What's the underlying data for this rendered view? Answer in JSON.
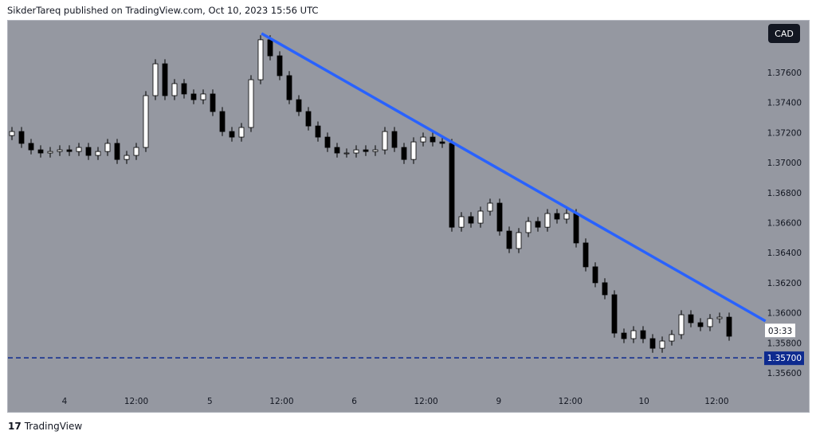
{
  "header": {
    "text": "SikderTareq published on TradingView.com, Oct 10, 2023 15:56 UTC"
  },
  "currency_button": "CAD",
  "footer": {
    "logo_mark": "17",
    "brand": "TradingView"
  },
  "chart_data": {
    "type": "candlestick",
    "title": "",
    "currency": "CAD",
    "first_open": 1.3718,
    "wick_pad": 0.0003,
    "closes": [
      1.37207,
      1.37128,
      1.37085,
      1.37064,
      1.37074,
      1.37085,
      1.37074,
      1.37101,
      1.37048,
      1.37074,
      1.37128,
      1.37021,
      1.37048,
      1.37101,
      1.37446,
      1.37658,
      1.37446,
      1.37526,
      1.37457,
      1.37419,
      1.37457,
      1.3734,
      1.37207,
      1.3717,
      1.37234,
      1.37552,
      1.37818,
      1.37711,
      1.37579,
      1.37419,
      1.3734,
      1.37244,
      1.3717,
      1.37101,
      1.37064,
      1.37064,
      1.37085,
      1.37074,
      1.37085,
      1.37207,
      1.37101,
      1.37021,
      1.37138,
      1.3717,
      1.37138,
      1.37128,
      1.3657,
      1.3664,
      1.36597,
      1.36677,
      1.3673,
      1.36544,
      1.36428,
      1.36534,
      1.36608,
      1.3657,
      1.36661,
      1.36624,
      1.36661,
      1.36465,
      1.36306,
      1.362,
      1.3612,
      1.35865,
      1.35828,
      1.35881,
      1.35828,
      1.35764,
      1.35812,
      1.35855,
      1.35987,
      1.35934,
      1.35908,
      1.35961,
      1.35971,
      1.35844
    ],
    "y_ticks": [
      "1.37600",
      "1.37400",
      "1.37200",
      "1.37000",
      "1.36800",
      "1.36600",
      "1.36400",
      "1.36200",
      "1.36000",
      "1.35800",
      "1.35600"
    ],
    "y_tick_values": [
      1.376,
      1.374,
      1.372,
      1.37,
      1.368,
      1.366,
      1.364,
      1.362,
      1.36,
      1.358,
      1.356
    ],
    "x_ticks": [
      {
        "label": "4",
        "index": 5.5
      },
      {
        "label": "12:00",
        "index": 13
      },
      {
        "label": "5",
        "index": 20.7
      },
      {
        "label": "12:00",
        "index": 28.2
      },
      {
        "label": "6",
        "index": 35.8
      },
      {
        "label": "12:00",
        "index": 43.3
      },
      {
        "label": "9",
        "index": 50.9
      },
      {
        "label": "12:00",
        "index": 58.4
      },
      {
        "label": "10",
        "index": 66.1
      },
      {
        "label": "12:00",
        "index": 73.7
      }
    ],
    "trendline": {
      "start": {
        "index": 26.1,
        "price": 1.3786
      },
      "end": {
        "index": 78.8,
        "price": 1.35945
      },
      "color": "#2962ff"
    },
    "horizontal_line": {
      "price": 1.357,
      "label": "1.35700",
      "color": "#0d2a8f",
      "style": "dashed"
    },
    "countdown": {
      "label": "03:33",
      "price": 1.3588
    },
    "colors": {
      "up": "#ffffff",
      "down": "#000000",
      "outline": "#000000",
      "background": "#9598a1"
    }
  }
}
